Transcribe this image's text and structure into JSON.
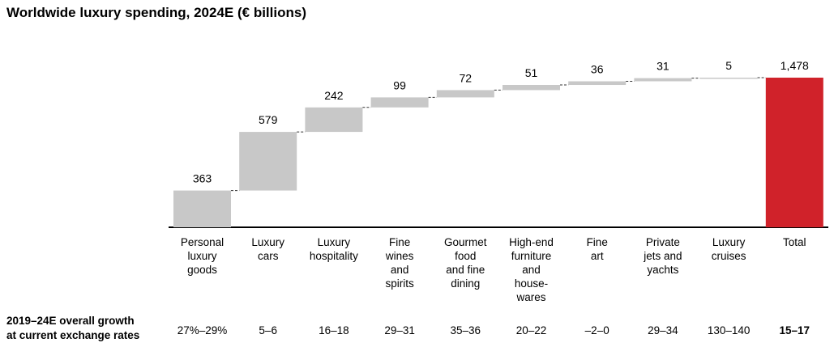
{
  "chart_data": {
    "type": "waterfall",
    "title": "Worldwide luxury spending, 2024E (€ billions)",
    "unit": "€ billions",
    "categories": [
      "Personal luxury goods",
      "Luxury cars",
      "Luxury hospitality",
      "Fine wines and spirits",
      "Gourmet food and fine dining",
      "High-end furniture and house-wares",
      "Fine art",
      "Private jets and yachts",
      "Luxury cruises",
      "Total"
    ],
    "category_lines": [
      [
        "Personal",
        "luxury",
        "goods"
      ],
      [
        "Luxury",
        "cars"
      ],
      [
        "Luxury",
        "hospitality"
      ],
      [
        "Fine",
        "wines",
        "and",
        "spirits"
      ],
      [
        "Gourmet",
        "food",
        "and fine",
        "dining"
      ],
      [
        "High-end",
        "furniture",
        "and",
        "house-",
        "wares"
      ],
      [
        "Fine",
        "art"
      ],
      [
        "Private",
        "jets and",
        "yachts"
      ],
      [
        "Luxury",
        "cruises"
      ],
      [
        "Total"
      ]
    ],
    "values": [
      363,
      579,
      242,
      99,
      72,
      51,
      36,
      31,
      5,
      1478
    ],
    "value_labels": [
      "363",
      "579",
      "242",
      "99",
      "72",
      "51",
      "36",
      "31",
      "5",
      "1,478"
    ],
    "total_index": 9,
    "ylim": [
      0,
      1478
    ],
    "colors": {
      "segment": "#c8c8c8",
      "total": "#d0222a",
      "connector": "#333333",
      "baseline": "#000000"
    }
  },
  "growth": {
    "label": "2019–24E overall growth\nat current exchange rates",
    "values": [
      "27%–29%",
      "5–6",
      "16–18",
      "29–31",
      "35–36",
      "20–22",
      "–2–0",
      "29–34",
      "130–140",
      "15–17"
    ],
    "bold_index": 9
  }
}
